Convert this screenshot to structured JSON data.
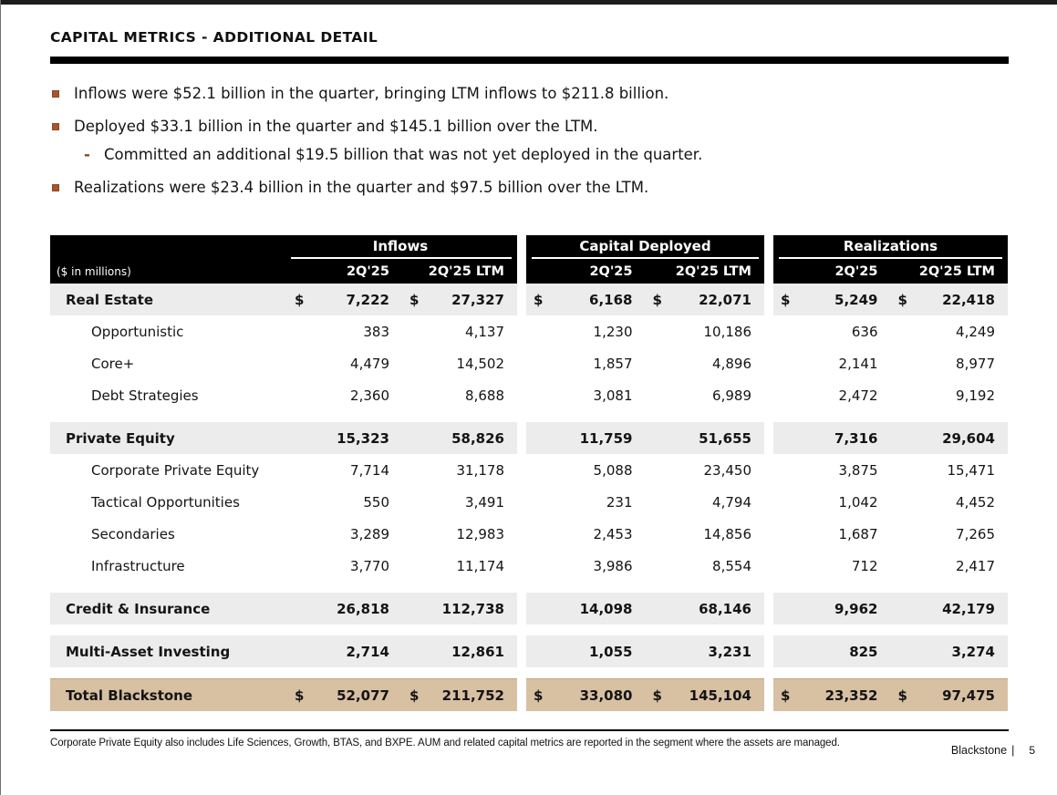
{
  "page": {
    "title": "CAPITAL METRICS - ADDITIONAL DETAIL",
    "footnote": "Corporate Private Equity also includes Life Sciences, Growth, BTAS, and BXPE. AUM and related capital metrics are reported in the segment where the assets are managed.",
    "brand": "Blackstone",
    "brand_separator": "|",
    "page_number": "5",
    "colors": {
      "accent_bullet": "#a8552a",
      "header_bg": "#000000",
      "section_row_bg": "#ececec",
      "total_row_bg": "#d8c0a3"
    }
  },
  "bullets": [
    {
      "level": 1,
      "marker": "square",
      "text": "Inflows were $52.1 billion in the quarter, bringing LTM inflows to $211.8 billion."
    },
    {
      "level": 1,
      "marker": "square",
      "text": "Deployed $33.1 billion in the quarter and $145.1 billion over the LTM."
    },
    {
      "level": 2,
      "marker": "dash",
      "text": "Committed an additional $19.5 billion that was not yet deployed in the quarter."
    },
    {
      "level": 1,
      "marker": "square",
      "text": "Realizations were $23.4 billion in the quarter and $97.5 billion over the LTM."
    }
  ],
  "table": {
    "units_label": "($ in millions)",
    "groups": [
      {
        "label": "Inflows"
      },
      {
        "label": "Capital Deployed"
      },
      {
        "label": "Realizations"
      }
    ],
    "col_headers": [
      "2Q'25",
      "2Q'25 LTM"
    ],
    "rows": [
      {
        "label": "Real Estate",
        "style": "section",
        "dollar": true,
        "gap_before": false,
        "values": [
          "7,222",
          "27,327",
          "6,168",
          "22,071",
          "5,249",
          "22,418"
        ]
      },
      {
        "label": "Opportunistic",
        "style": "sub",
        "dollar": false,
        "gap_before": false,
        "values": [
          "383",
          "4,137",
          "1,230",
          "10,186",
          "636",
          "4,249"
        ]
      },
      {
        "label": "Core+",
        "style": "sub",
        "dollar": false,
        "gap_before": false,
        "values": [
          "4,479",
          "14,502",
          "1,857",
          "4,896",
          "2,141",
          "8,977"
        ]
      },
      {
        "label": "Debt Strategies",
        "style": "sub",
        "dollar": false,
        "gap_before": false,
        "values": [
          "2,360",
          "8,688",
          "3,081",
          "6,989",
          "2,472",
          "9,192"
        ]
      },
      {
        "label": "Private Equity",
        "style": "section",
        "dollar": false,
        "gap_before": true,
        "values": [
          "15,323",
          "58,826",
          "11,759",
          "51,655",
          "7,316",
          "29,604"
        ]
      },
      {
        "label": "Corporate Private Equity",
        "style": "sub",
        "dollar": false,
        "gap_before": false,
        "values": [
          "7,714",
          "31,178",
          "5,088",
          "23,450",
          "3,875",
          "15,471"
        ]
      },
      {
        "label": "Tactical Opportunities",
        "style": "sub",
        "dollar": false,
        "gap_before": false,
        "values": [
          "550",
          "3,491",
          "231",
          "4,794",
          "1,042",
          "4,452"
        ]
      },
      {
        "label": "Secondaries",
        "style": "sub",
        "dollar": false,
        "gap_before": false,
        "values": [
          "3,289",
          "12,983",
          "2,453",
          "14,856",
          "1,687",
          "7,265"
        ]
      },
      {
        "label": "Infrastructure",
        "style": "sub",
        "dollar": false,
        "gap_before": false,
        "values": [
          "3,770",
          "11,174",
          "3,986",
          "8,554",
          "712",
          "2,417"
        ]
      },
      {
        "label": "Credit & Insurance",
        "style": "section",
        "dollar": false,
        "gap_before": true,
        "values": [
          "26,818",
          "112,738",
          "14,098",
          "68,146",
          "9,962",
          "42,179"
        ]
      },
      {
        "label": "Multi-Asset Investing",
        "style": "section",
        "dollar": false,
        "gap_before": true,
        "values": [
          "2,714",
          "12,861",
          "1,055",
          "3,231",
          "825",
          "3,274"
        ]
      },
      {
        "label": "Total Blackstone",
        "style": "total",
        "dollar": true,
        "gap_before": true,
        "values": [
          "52,077",
          "211,752",
          "33,080",
          "145,104",
          "23,352",
          "97,475"
        ]
      }
    ]
  }
}
